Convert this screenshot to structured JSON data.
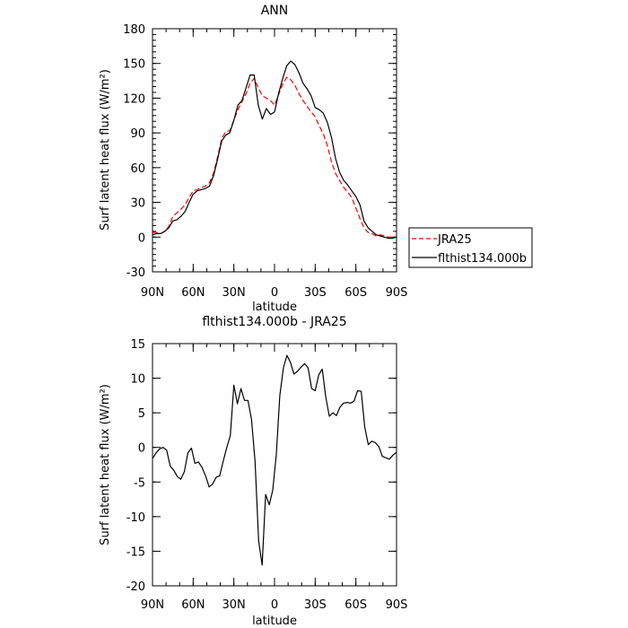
{
  "chart_data": [
    {
      "type": "line",
      "title": "ANN",
      "xlabel": "latitude",
      "ylabel": "Surf latent heat flux (W/m²)",
      "ylim": [
        -30,
        180
      ],
      "yticks": [
        "180",
        "150",
        "120",
        "90",
        "60",
        "30",
        "0",
        "-30"
      ],
      "xlim": [
        90,
        -90
      ],
      "xticks": [
        "90N",
        "60N",
        "30N",
        "0",
        "30S",
        "60S",
        "90S"
      ],
      "grid": false,
      "legend": "right",
      "x": [
        90,
        87,
        84,
        81,
        78,
        75,
        72,
        69,
        66,
        63,
        60,
        57,
        54,
        51,
        48,
        45,
        42,
        39,
        36,
        33,
        30,
        27,
        24,
        21,
        18,
        15,
        12,
        9,
        6,
        3,
        0,
        -3,
        -6,
        -9,
        -12,
        -15,
        -18,
        -21,
        -24,
        -27,
        -30,
        -33,
        -36,
        -39,
        -42,
        -45,
        -48,
        -51,
        -54,
        -57,
        -60,
        -63,
        -66,
        -69,
        -72,
        -75,
        -78,
        -81,
        -84,
        -87,
        -90
      ],
      "series": [
        {
          "name": "JRA25",
          "color": "#ff0000",
          "dash": "dashed",
          "values": [
            4,
            4,
            3,
            5,
            9,
            18,
            21,
            24,
            28,
            34,
            40,
            41,
            43,
            44,
            47,
            55,
            69,
            85,
            91,
            92,
            101,
            110,
            117,
            124,
            133,
            137,
            129,
            122,
            120,
            118,
            114,
            123,
            132,
            138,
            136,
            131,
            124,
            118,
            113,
            108,
            104,
            96,
            89,
            79,
            65,
            55,
            49,
            43,
            39,
            34,
            25,
            16,
            8,
            4,
            3,
            1,
            2,
            1,
            0,
            0,
            0
          ]
        },
        {
          "name": "flthist134.000b",
          "color": "#000000",
          "dash": "solid",
          "values": [
            2,
            3,
            3,
            5,
            8,
            14,
            15,
            18,
            22,
            30,
            37,
            40,
            41,
            42,
            44,
            53,
            67,
            83,
            88,
            90,
            101,
            114,
            118,
            129,
            140,
            140,
            114,
            102,
            111,
            106,
            108,
            124,
            137,
            148,
            152,
            149,
            142,
            133,
            128,
            122,
            112,
            110,
            107,
            99,
            86,
            68,
            56,
            49,
            45,
            40,
            35,
            28,
            14,
            8,
            5,
            2,
            1,
            0,
            -1,
            -1,
            0
          ]
        }
      ]
    },
    {
      "type": "line",
      "title": "flthist134.000b - JRA25",
      "xlabel": "latitude",
      "ylabel": "Surf latent heat flux (W/m²)",
      "ylim": [
        -20,
        15
      ],
      "yticks": [
        "15",
        "10",
        "5",
        "0",
        "-5",
        "-10",
        "-15",
        "-20"
      ],
      "xlim": [
        90,
        -90
      ],
      "xticks": [
        "90N",
        "60N",
        "30N",
        "0",
        "30S",
        "60S",
        "90S"
      ],
      "grid": false,
      "series": [
        {
          "name": "",
          "color": "#000000",
          "dash": "solid",
          "values": [
            -1.6,
            -0.8,
            -0.2,
            0,
            -0.4,
            -2.7,
            -3.3,
            -4.2,
            -4.6,
            -3.5,
            -0.8,
            -0.1,
            -2.3,
            -2.1,
            -2.9,
            -4.1,
            -5.7,
            -5.3,
            -4.3,
            -4.1,
            -2.0,
            0,
            1.7,
            9.0,
            6.3,
            8.5,
            6.8,
            6.8,
            4.0,
            -2.0,
            -13.5,
            -17.0,
            -6.8,
            -8.3,
            -6.2,
            -1.0,
            7.5,
            11.5,
            13.3,
            12.3,
            10.6,
            11.0,
            11.6,
            12.1,
            11.5,
            8.5,
            8.2,
            10.5,
            11.3,
            7.2,
            4.5,
            5.0,
            4.6,
            5.8,
            6.4,
            6.5,
            6.4,
            6.7,
            8.2,
            8.1,
            3.0,
            0.4,
            0.9,
            0.7,
            0.1,
            -1.3,
            -1.5,
            -1.7,
            -1.1,
            -0.7
          ]
        }
      ]
    }
  ]
}
